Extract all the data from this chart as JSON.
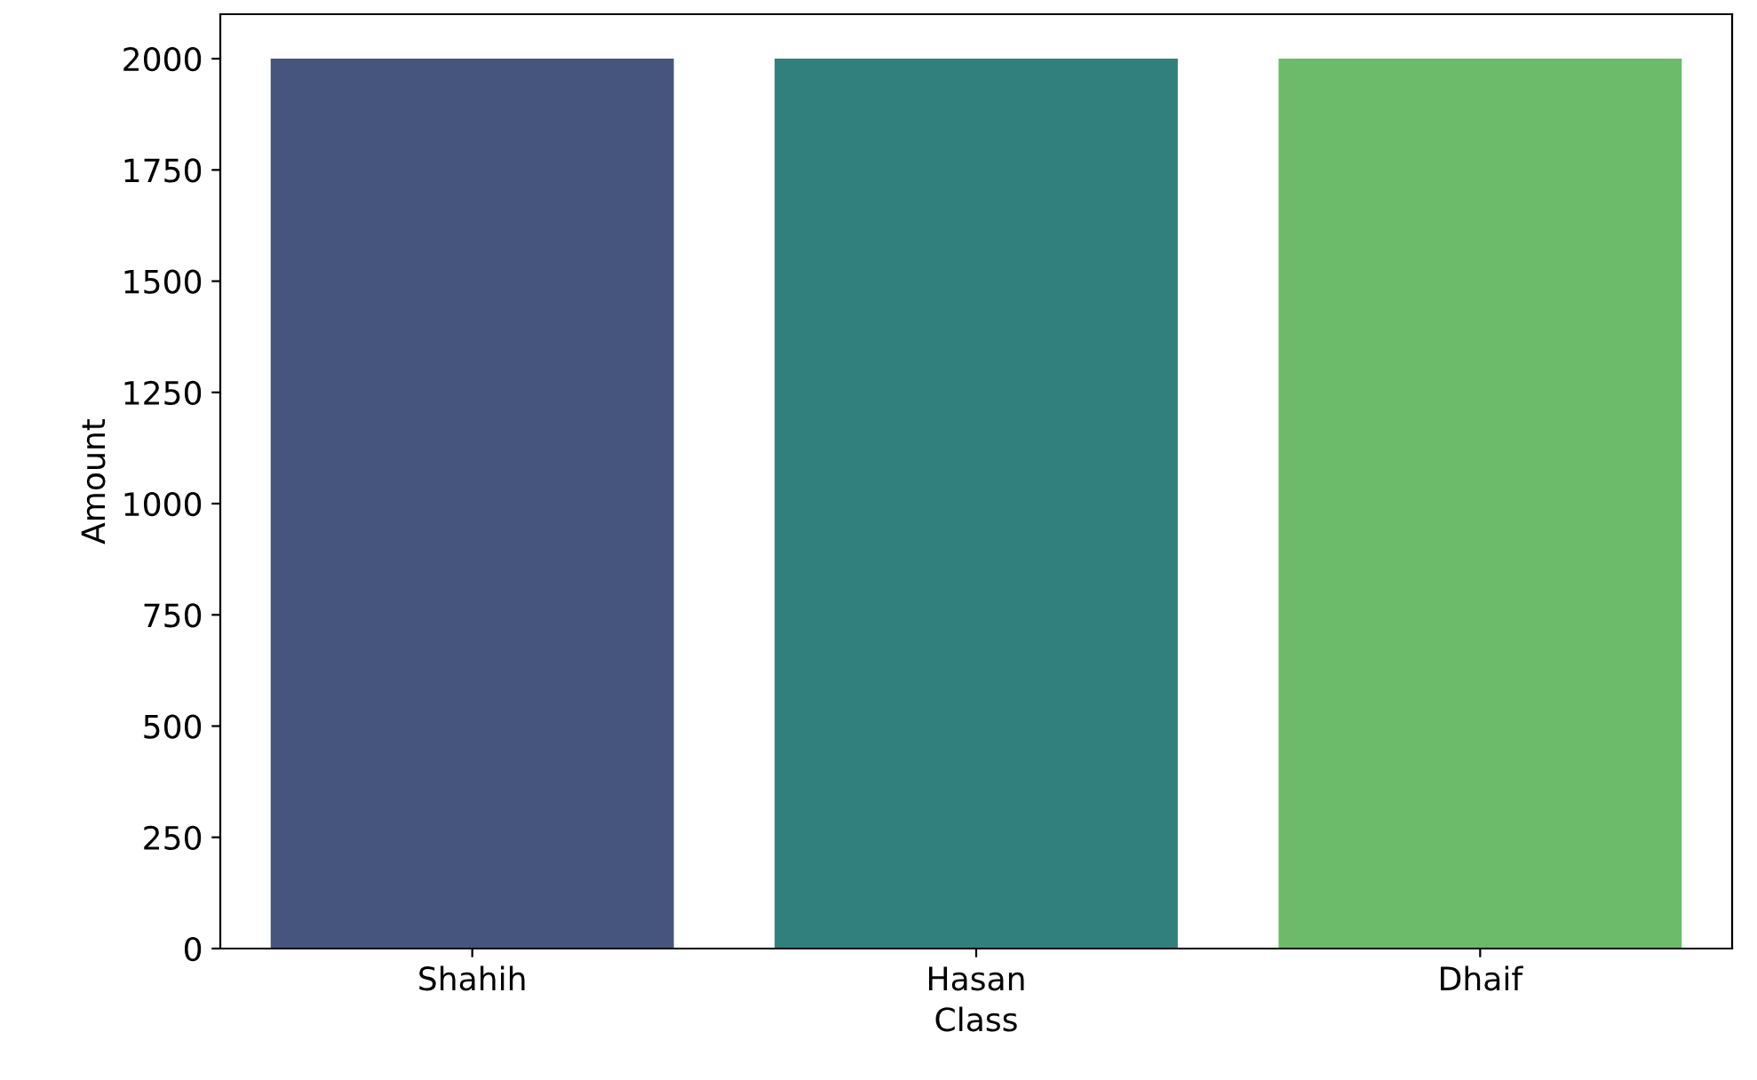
{
  "chart_data": {
    "type": "bar",
    "xlabel": "Class",
    "ylabel": "Amount",
    "categories": [
      "Shahih",
      "Hasan",
      "Dhaif"
    ],
    "values": [
      2000,
      2000,
      2000
    ],
    "colors": [
      "#45557e",
      "#31807e",
      "#6bbb6b"
    ],
    "ylim": [
      0,
      2100
    ],
    "yticks": [
      0,
      250,
      500,
      750,
      1000,
      1250,
      1500,
      1750,
      2000
    ],
    "grid": false
  }
}
